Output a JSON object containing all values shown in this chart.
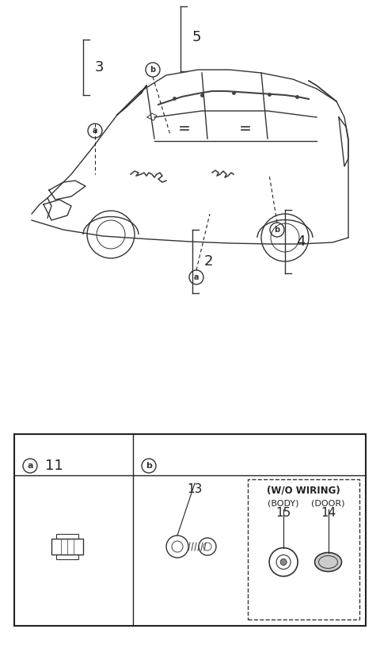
{
  "bg_color": "#ffffff",
  "line_color": "#222222",
  "fig_width": 4.8,
  "fig_height": 8.18,
  "dpi": 100,
  "car_diagram": {
    "numbers": [
      "2",
      "3",
      "4",
      "5"
    ],
    "labels_a": [
      "a",
      "a"
    ],
    "labels_b": [
      "b",
      "b"
    ]
  },
  "parts_table": {
    "section_a_label": "a",
    "section_a_number": "11",
    "section_b_label": "b",
    "part13_label": "13",
    "wo_wiring_label": "(W/O WIRING)",
    "body_label": "(BODY)",
    "body_number": "15",
    "door_label": "(DOOR)",
    "door_number": "14"
  }
}
